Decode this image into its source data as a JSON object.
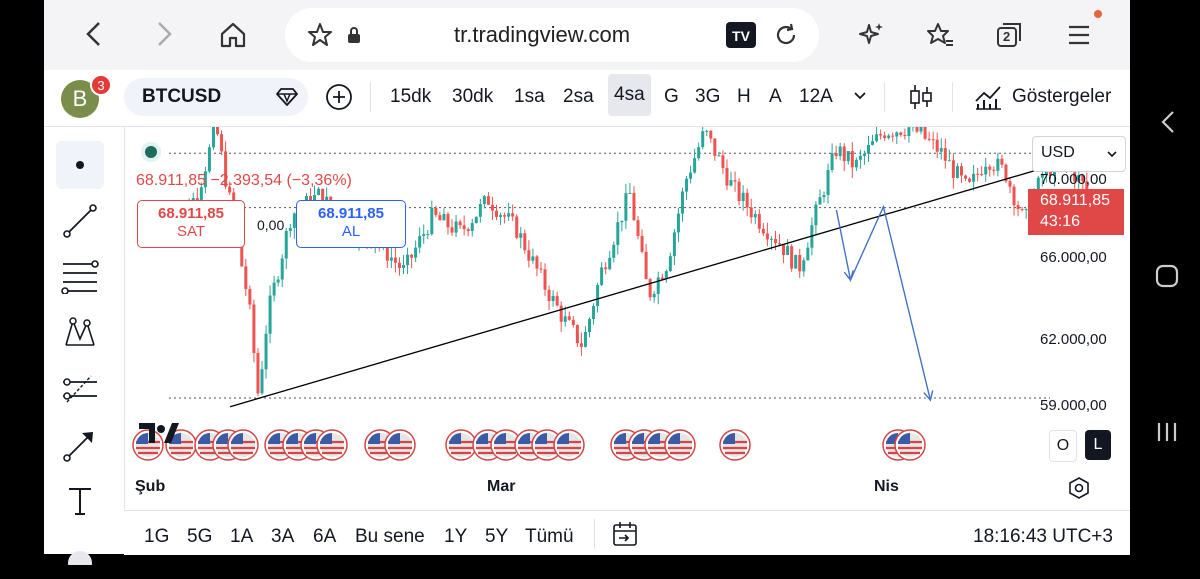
{
  "browser": {
    "url": "tr.tradingview.com",
    "tab_count": "2"
  },
  "toolbar": {
    "avatar_letter": "B",
    "avatar_badge": "3",
    "symbol": "BTCUSD",
    "intervals": [
      "15dk",
      "30dk",
      "1sa",
      "2sa",
      "4sa",
      "G",
      "3G",
      "H",
      "A",
      "12A"
    ],
    "active_interval": "4sa",
    "indicators_label": "Göstergeler"
  },
  "chart_info": {
    "line": "68.911,85 −2.393,54 (−3,36%)",
    "sell_price": "68.911,85",
    "sell_label": "SAT",
    "spread": "0,00",
    "buy_price": "68.911,85",
    "buy_label": "AL"
  },
  "price_axis": {
    "currency": "USD",
    "labels": [
      "70.000,00",
      "66.000,00",
      "62.000,00",
      "59.000,00"
    ],
    "current_price": "68.911,85",
    "countdown": "43:16"
  },
  "time_axis": {
    "labels": [
      "Şub",
      "Mar",
      "Nis"
    ]
  },
  "bottom_bar": {
    "ranges": [
      "1G",
      "5G",
      "1A",
      "3A",
      "6A",
      "Bu sene",
      "1Y",
      "5Y",
      "Tümü"
    ],
    "clock": "18:16:43 UTC+3"
  },
  "chart_controls": {
    "log_label": "O",
    "log_scale_label": "L"
  },
  "colors": {
    "up": "#26a69a",
    "down": "#ef5350",
    "projection": "#4472c4",
    "trendline": "#000000",
    "price_tag": "#e04848"
  },
  "chart_data": {
    "type": "candlestick",
    "symbol": "BTCUSD",
    "interval": "4sa",
    "currency": "USD",
    "ylim": [
      57500,
      72600
    ],
    "x": [
      "Şub",
      "Mar",
      "Nis"
    ],
    "last_price": 68911.85,
    "change": -2393.54,
    "change_pct": -3.36,
    "horizontal_lines": [
      68911.85,
      60200
    ],
    "trendline": [
      [
        0.065,
        59800
      ],
      [
        1.0,
        71600
      ]
    ],
    "projection_path": [
      [
        0.71,
        68800
      ],
      [
        0.725,
        65600
      ],
      [
        0.76,
        68950
      ],
      [
        0.81,
        60100
      ]
    ],
    "close_path": [
      [
        0.0,
        68000
      ],
      [
        0.03,
        69500
      ],
      [
        0.05,
        72600
      ],
      [
        0.07,
        68000
      ],
      [
        0.085,
        64500
      ],
      [
        0.095,
        60300
      ],
      [
        0.105,
        64000
      ],
      [
        0.13,
        68600
      ],
      [
        0.16,
        69500
      ],
      [
        0.19,
        68000
      ],
      [
        0.22,
        67400
      ],
      [
        0.25,
        66000
      ],
      [
        0.28,
        68500
      ],
      [
        0.31,
        67800
      ],
      [
        0.34,
        69300
      ],
      [
        0.37,
        67900
      ],
      [
        0.4,
        65300
      ],
      [
        0.42,
        63800
      ],
      [
        0.44,
        62600
      ],
      [
        0.46,
        66000
      ],
      [
        0.49,
        69600
      ],
      [
        0.51,
        64900
      ],
      [
        0.53,
        66400
      ],
      [
        0.55,
        70200
      ],
      [
        0.57,
        72400
      ],
      [
        0.6,
        69800
      ],
      [
        0.63,
        68200
      ],
      [
        0.65,
        67300
      ],
      [
        0.67,
        66100
      ],
      [
        0.69,
        68900
      ],
      [
        0.71,
        71600
      ],
      [
        0.73,
        70800
      ],
      [
        0.76,
        72400
      ],
      [
        0.79,
        72600
      ],
      [
        0.82,
        71500
      ],
      [
        0.85,
        69700
      ],
      [
        0.87,
        71200
      ],
      [
        0.89,
        70500
      ],
      [
        0.91,
        68200
      ],
      [
        0.93,
        70500
      ],
      [
        0.95,
        71100
      ],
      [
        0.97,
        70100
      ],
      [
        0.985,
        69000
      ]
    ]
  }
}
